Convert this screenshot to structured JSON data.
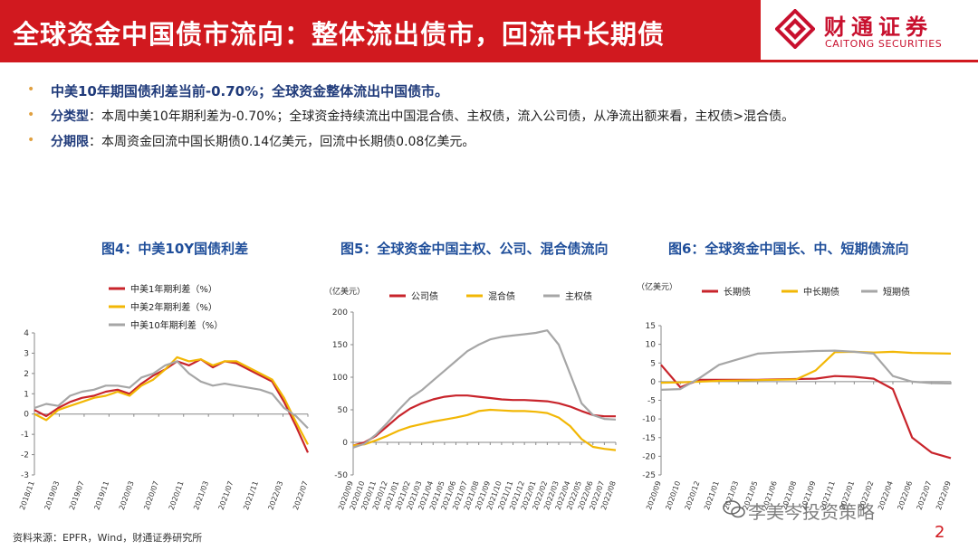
{
  "header": {
    "title": "全球资金中国债市流向：整体流出债市，回流中长期债",
    "logo_cn": "财通证券",
    "logo_en": "CAITONG SECURITIES"
  },
  "bullets": [
    {
      "key": "",
      "text": "中美10年期国债利差当前-0.70%；全球资金整体流出中国债市。"
    },
    {
      "key": "分类型",
      "text": "：本周中美10年期利差为-0.70%；全球资金持续流出中国混合债、主权债，流入公司债，从净流出额来看，主权债>混合债。"
    },
    {
      "key": "分期限",
      "text": "：本周资金回流中国长期债0.14亿美元，回流中长期债0.08亿美元。"
    }
  ],
  "footer": {
    "source": "资料来源：EPFR，Wind，财通证券研究所",
    "page": "2",
    "watermark": "李美岑投资策略"
  },
  "chart_data": [
    {
      "type": "line",
      "title": "图4：中美10Y国债利差",
      "unit_label": "",
      "ylim": [
        -3,
        4
      ],
      "yticks": [
        -3,
        -2,
        -1,
        0,
        1,
        2,
        3,
        4
      ],
      "x_ticks": [
        "2018/11",
        "2019/03",
        "2019/07",
        "2019/11",
        "2020/03",
        "2020/07",
        "2020/11",
        "2021/03",
        "2021/07",
        "2021/11",
        "2022/03",
        "2022/07"
      ],
      "series": [
        {
          "name": "中美1年期利差（%）",
          "color": "#c8242b",
          "values": [
            0.2,
            -0.1,
            0.3,
            0.6,
            0.8,
            0.9,
            1.1,
            1.2,
            1.0,
            1.5,
            1.9,
            2.2,
            2.6,
            2.4,
            2.7,
            2.3,
            2.6,
            2.5,
            2.2,
            1.9,
            1.6,
            0.6,
            -0.6,
            -1.9
          ]
        },
        {
          "name": "中美2年期利差（%）",
          "color": "#f2b705",
          "values": [
            0.0,
            -0.3,
            0.2,
            0.4,
            0.6,
            0.8,
            0.9,
            1.1,
            0.9,
            1.4,
            1.7,
            2.2,
            2.8,
            2.6,
            2.7,
            2.4,
            2.6,
            2.6,
            2.3,
            2.0,
            1.7,
            0.8,
            -0.4,
            -1.5
          ]
        },
        {
          "name": "中美10年期利差（%）",
          "color": "#a6a6a6",
          "values": [
            0.3,
            0.5,
            0.4,
            0.9,
            1.1,
            1.2,
            1.4,
            1.4,
            1.3,
            1.8,
            2.0,
            2.4,
            2.6,
            2.0,
            1.6,
            1.4,
            1.5,
            1.4,
            1.3,
            1.2,
            1.0,
            0.3,
            -0.1,
            -0.7
          ]
        }
      ]
    },
    {
      "type": "line",
      "title": "图5：全球资金中国主权、公司、混合债流向",
      "unit_label": "（亿美元）",
      "ylim": [
        -50,
        200
      ],
      "yticks": [
        -50,
        0,
        50,
        100,
        150,
        200
      ],
      "x_ticks": [
        "2020/09",
        "2020/10",
        "2020/11",
        "2020/12",
        "2021/01",
        "2021/02",
        "2021/03",
        "2021/04",
        "2021/05",
        "2021/06",
        "2021/07",
        "2021/08",
        "2021/09",
        "2021/10",
        "2021/11",
        "2021/12",
        "2022/01",
        "2022/02",
        "2022/03",
        "2022/04",
        "2022/05",
        "2022/06",
        "2022/07",
        "2022/08"
      ],
      "series": [
        {
          "name": "公司债",
          "color": "#c8242b",
          "values": [
            -5,
            0,
            10,
            25,
            40,
            52,
            60,
            66,
            70,
            72,
            72,
            70,
            68,
            66,
            65,
            65,
            64,
            63,
            60,
            55,
            48,
            42,
            40,
            40
          ]
        },
        {
          "name": "混合债",
          "color": "#f2b705",
          "values": [
            -5,
            -3,
            3,
            10,
            18,
            24,
            28,
            32,
            35,
            38,
            42,
            48,
            50,
            49,
            48,
            48,
            47,
            45,
            38,
            25,
            5,
            -7,
            -10,
            -12
          ]
        },
        {
          "name": "主权债",
          "color": "#a6a6a6",
          "values": [
            -8,
            -2,
            12,
            30,
            50,
            68,
            80,
            95,
            110,
            125,
            140,
            150,
            158,
            162,
            164,
            166,
            168,
            172,
            150,
            105,
            60,
            42,
            36,
            35
          ]
        }
      ]
    },
    {
      "type": "line",
      "title": "图6：全球资金中国长、中、短期债流向",
      "unit_label": "（亿美元）",
      "ylim": [
        -25,
        15
      ],
      "yticks": [
        -25,
        -20,
        -15,
        -10,
        -5,
        0,
        5,
        10,
        15
      ],
      "x_ticks": [
        "2020/09",
        "2020/10",
        "2020/12",
        "2021/01",
        "2021/03",
        "2021/05",
        "2021/06",
        "2021/08",
        "2021/09",
        "2021/11",
        "2022/01",
        "2022/02",
        "2022/04",
        "2022/06",
        "2022/07",
        "2022/09"
      ],
      "series": [
        {
          "name": "长期债",
          "color": "#c8242b",
          "values": [
            4.5,
            -1.5,
            0.5,
            0.5,
            0.5,
            0.5,
            0.6,
            0.7,
            0.8,
            1.5,
            1.3,
            0.8,
            -2.0,
            -15.0,
            -19.0,
            -20.5
          ]
        },
        {
          "name": "中长期债",
          "color": "#f2b705",
          "values": [
            -0.3,
            -0.2,
            0.0,
            0.2,
            0.3,
            0.4,
            0.5,
            0.6,
            3.0,
            7.9,
            8.0,
            7.8,
            8.0,
            7.7,
            7.6,
            7.5
          ]
        },
        {
          "name": "短期债",
          "color": "#a6a6a6",
          "values": [
            -2.2,
            -2.0,
            1.0,
            4.5,
            6.0,
            7.5,
            7.8,
            8.0,
            8.2,
            8.3,
            8.0,
            7.5,
            1.5,
            0.0,
            -0.4,
            -0.5
          ]
        }
      ]
    }
  ]
}
